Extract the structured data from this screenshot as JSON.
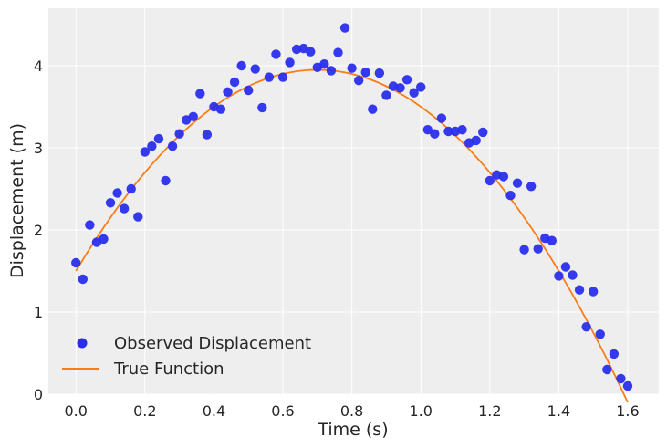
{
  "chart_data": {
    "type": "scatter",
    "title": "",
    "xlabel": "Time (s)",
    "ylabel": "Displacement (m)",
    "xlim": [
      -0.08,
      1.69
    ],
    "ylim": [
      0,
      4.7
    ],
    "xticks": [
      0.0,
      0.2,
      0.4,
      0.6,
      0.8,
      1.0,
      1.2,
      1.4,
      1.6
    ],
    "xtick_labels": [
      "0.0",
      "0.2",
      "0.4",
      "0.6",
      "0.8",
      "1.0",
      "1.2",
      "1.4",
      "1.6"
    ],
    "yticks": [
      0,
      1,
      2,
      3,
      4
    ],
    "ytick_labels": [
      "0",
      "1",
      "2",
      "3",
      "4"
    ],
    "grid": true,
    "legend_position": "lower-left",
    "series": [
      {
        "name": "Observed Displacement",
        "kind": "scatter",
        "color": "#2a2eec",
        "points": [
          [
            0.0,
            1.6
          ],
          [
            0.02,
            1.4
          ],
          [
            0.04,
            2.06
          ],
          [
            0.06,
            1.85
          ],
          [
            0.08,
            1.89
          ],
          [
            0.1,
            2.33
          ],
          [
            0.12,
            2.45
          ],
          [
            0.14,
            2.26
          ],
          [
            0.16,
            2.5
          ],
          [
            0.18,
            2.16
          ],
          [
            0.2,
            2.95
          ],
          [
            0.22,
            3.02
          ],
          [
            0.24,
            3.11
          ],
          [
            0.26,
            2.6
          ],
          [
            0.28,
            3.02
          ],
          [
            0.3,
            3.17
          ],
          [
            0.32,
            3.34
          ],
          [
            0.34,
            3.38
          ],
          [
            0.36,
            3.66
          ],
          [
            0.38,
            3.16
          ],
          [
            0.4,
            3.5
          ],
          [
            0.42,
            3.47
          ],
          [
            0.44,
            3.68
          ],
          [
            0.46,
            3.8
          ],
          [
            0.48,
            4.0
          ],
          [
            0.5,
            3.7
          ],
          [
            0.52,
            3.96
          ],
          [
            0.54,
            3.49
          ],
          [
            0.56,
            3.86
          ],
          [
            0.58,
            4.14
          ],
          [
            0.6,
            3.86
          ],
          [
            0.62,
            4.04
          ],
          [
            0.64,
            4.2
          ],
          [
            0.66,
            4.21
          ],
          [
            0.68,
            4.17
          ],
          [
            0.7,
            3.98
          ],
          [
            0.72,
            4.02
          ],
          [
            0.74,
            3.94
          ],
          [
            0.76,
            4.16
          ],
          [
            0.78,
            4.46
          ],
          [
            0.8,
            3.97
          ],
          [
            0.82,
            3.82
          ],
          [
            0.84,
            3.92
          ],
          [
            0.86,
            3.47
          ],
          [
            0.88,
            3.91
          ],
          [
            0.9,
            3.64
          ],
          [
            0.92,
            3.75
          ],
          [
            0.94,
            3.73
          ],
          [
            0.96,
            3.83
          ],
          [
            0.98,
            3.67
          ],
          [
            1.0,
            3.74
          ],
          [
            1.02,
            3.22
          ],
          [
            1.04,
            3.17
          ],
          [
            1.06,
            3.36
          ],
          [
            1.08,
            3.2
          ],
          [
            1.1,
            3.2
          ],
          [
            1.12,
            3.22
          ],
          [
            1.14,
            3.06
          ],
          [
            1.16,
            3.09
          ],
          [
            1.18,
            3.19
          ],
          [
            1.2,
            2.6
          ],
          [
            1.22,
            2.67
          ],
          [
            1.24,
            2.65
          ],
          [
            1.26,
            2.42
          ],
          [
            1.28,
            2.57
          ],
          [
            1.32,
            2.53
          ],
          [
            1.3,
            1.76
          ],
          [
            1.34,
            1.77
          ],
          [
            1.36,
            1.9
          ],
          [
            1.38,
            1.87
          ],
          [
            1.4,
            1.44
          ],
          [
            1.42,
            1.55
          ],
          [
            1.44,
            1.45
          ],
          [
            1.46,
            1.27
          ],
          [
            1.48,
            0.82
          ],
          [
            1.5,
            1.25
          ],
          [
            1.52,
            0.73
          ],
          [
            1.54,
            0.3
          ],
          [
            1.56,
            0.49
          ],
          [
            1.58,
            0.19
          ],
          [
            1.6,
            0.1
          ]
        ]
      },
      {
        "name": "True Function",
        "kind": "line",
        "color": "#fa7c17",
        "function": "1.5 + 7*t - 5*t^2",
        "x": [
          0.0,
          0.1,
          0.2,
          0.3,
          0.4,
          0.5,
          0.6,
          0.7,
          0.8,
          0.9,
          1.0,
          1.1,
          1.2,
          1.3,
          1.4,
          1.5,
          1.6
        ],
        "y": [
          1.5,
          2.15,
          2.7,
          3.15,
          3.5,
          3.75,
          3.9,
          3.95,
          3.9,
          3.75,
          3.5,
          3.15,
          2.7,
          2.15,
          1.5,
          0.75,
          -0.1
        ]
      }
    ]
  }
}
